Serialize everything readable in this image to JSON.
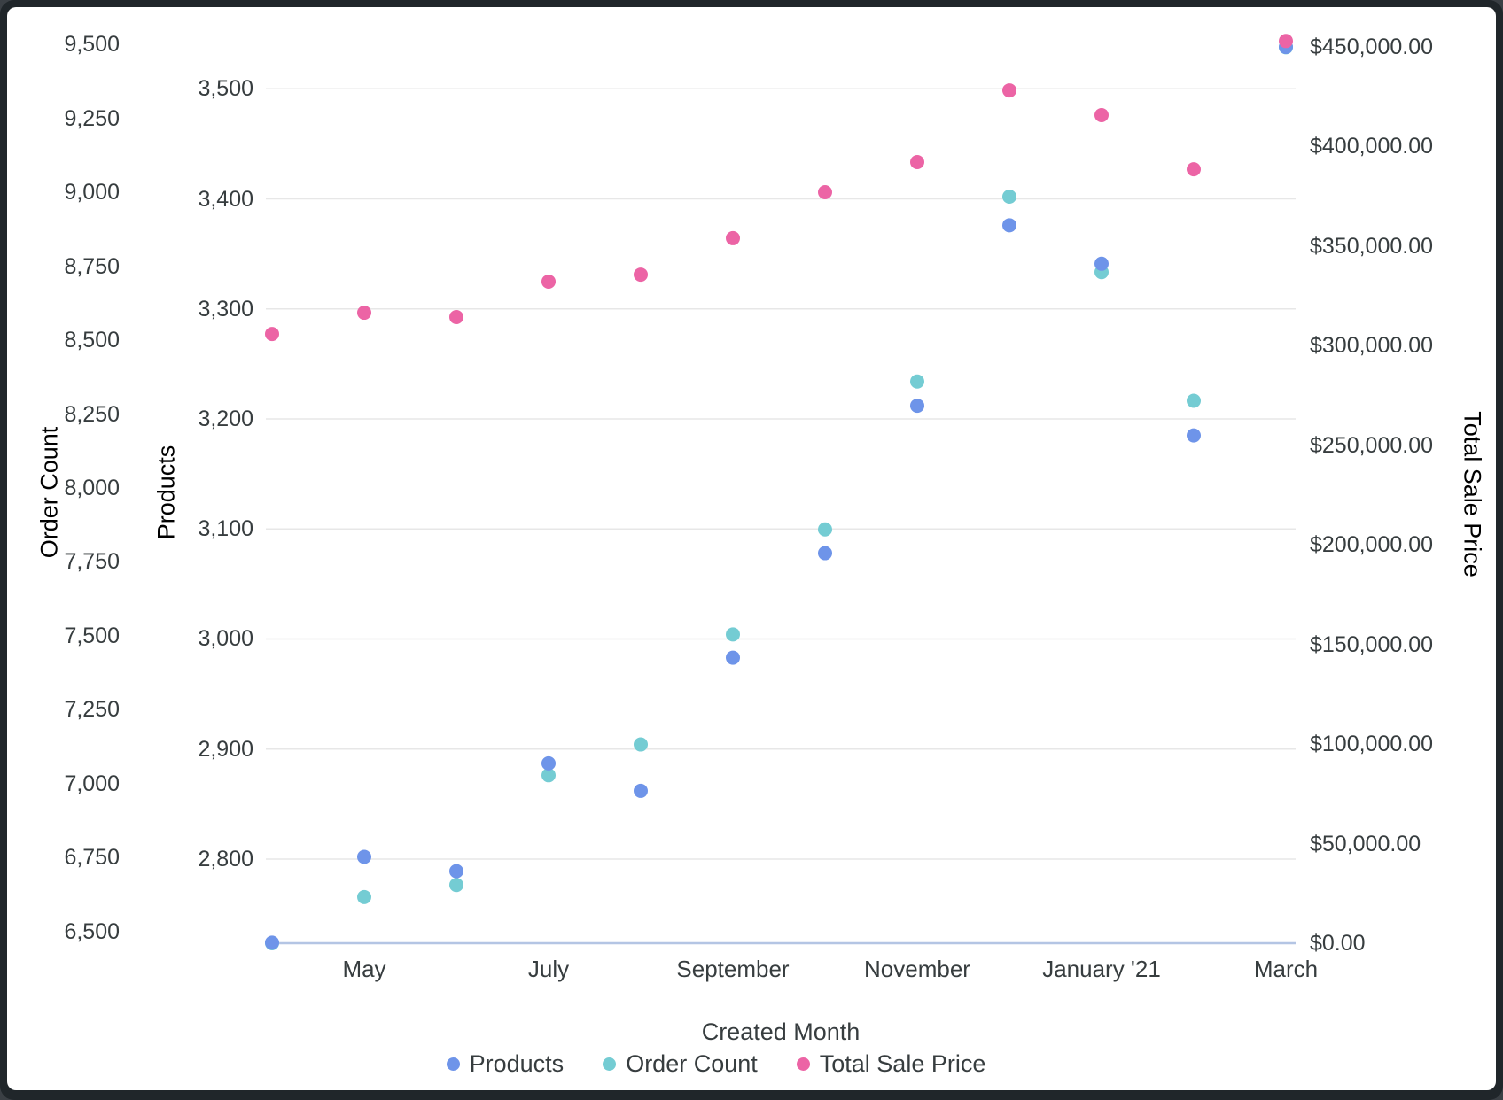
{
  "chart_data": {
    "type": "scatter",
    "x_axis": {
      "title": "Created Month",
      "ticks": [
        {
          "index": 1,
          "label": "May"
        },
        {
          "index": 3,
          "label": "July"
        },
        {
          "index": 5,
          "label": "September"
        },
        {
          "index": 7,
          "label": "November"
        },
        {
          "index": 9,
          "label": "January '21"
        },
        {
          "index": 11,
          "label": "March"
        }
      ],
      "num_points": 12
    },
    "y_axes": {
      "orderCount": {
        "title": "Order Count",
        "title_color": "#21c1d6",
        "min": 6461,
        "max": 9530,
        "tick_values": [
          6500,
          6750,
          7000,
          7250,
          7500,
          7750,
          8000,
          8250,
          8500,
          8750,
          9000,
          9250,
          9500
        ],
        "tick_labels": [
          "6,500",
          "6,750",
          "7,000",
          "7,250",
          "7,500",
          "7,750",
          "8,000",
          "8,250",
          "8,500",
          "8,750",
          "9,000",
          "9,250",
          "9,500"
        ]
      },
      "products": {
        "title": "Products",
        "title_color": "#2979f2",
        "min": 2723.5,
        "max": 3548.5,
        "tick_values": [
          2800,
          2900,
          3000,
          3100,
          3200,
          3300,
          3400,
          3500
        ],
        "tick_labels": [
          "2,800",
          "2,900",
          "3,000",
          "3,100",
          "3,200",
          "3,300",
          "3,400",
          "3,500"
        ],
        "gridlines": true
      },
      "price": {
        "title": "Total Sale Price",
        "title_color": "#e5238f",
        "min": 0,
        "max": 455800,
        "tick_values": [
          0,
          50000,
          100000,
          150000,
          200000,
          250000,
          300000,
          350000,
          400000,
          450000
        ],
        "tick_labels": [
          "$0.00",
          "$50,000.00",
          "$100,000.00",
          "$150,000.00",
          "$200,000.00",
          "$250,000.00",
          "$300,000.00",
          "$350,000.00",
          "$400,000.00",
          "$450,000.00"
        ]
      }
    },
    "series": [
      {
        "name": "Order Count",
        "axis": "orderCount",
        "color": "#74ccd3",
        "values": [
          6461,
          6617,
          6658,
          7029,
          7133,
          7505,
          7860,
          8360,
          8985,
          8730,
          8295,
          9490
        ]
      },
      {
        "name": "Products",
        "axis": "products",
        "color": "#6e94e9",
        "values": [
          2724,
          2802,
          2789,
          2887,
          2862,
          2983,
          3078,
          3212,
          3376,
          3341,
          3185,
          3538
        ]
      },
      {
        "name": "Total Sale Price",
        "axis": "price",
        "color": "#ec64a5",
        "values": [
          305900,
          316600,
          314400,
          332200,
          335700,
          354000,
          377100,
          392200,
          428200,
          415800,
          388600,
          453000
        ]
      }
    ],
    "legend": [
      {
        "label": "Products",
        "color": "#6e94e9"
      },
      {
        "label": "Order Count",
        "color": "#74ccd3"
      },
      {
        "label": "Total Sale Price",
        "color": "#ec64a5"
      }
    ],
    "grid_color": "#e7e7e7",
    "baseline_color": "#b4c5e4",
    "text_color": "#373d3f"
  },
  "titles": {
    "order_count_axis": "Order Count",
    "products_axis": "Products",
    "price_axis": "Total Sale Price",
    "x_axis": "Created Month"
  }
}
